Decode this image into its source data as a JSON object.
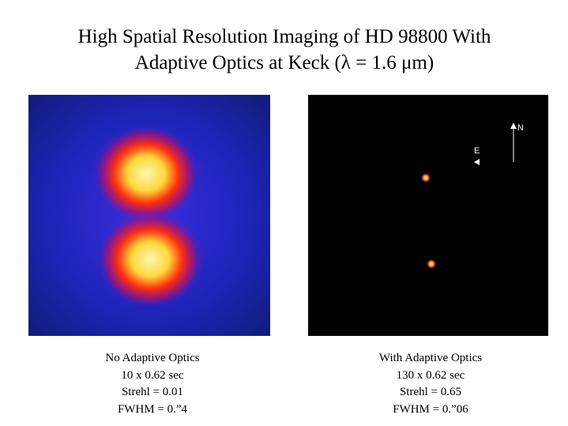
{
  "header": {
    "title_lines": [
      "High Spatial Resolution Imaging of HD 98800 With",
      "Adaptive Optics at Keck (λ = 1.6 μm)"
    ]
  },
  "panels": [
    {
      "caption_lines": [
        "No Adaptive Optics",
        "10 x 0.62 sec",
        "Strehl = 0.01",
        "FWHM = 0.”4"
      ]
    },
    {
      "caption_lines": [
        "With Adaptive Optics",
        "130 x 0.62 sec",
        "Strehl = 0.65",
        "FWHM = 0.”06"
      ],
      "compass": {
        "north": "N",
        "east": "E"
      }
    }
  ]
}
